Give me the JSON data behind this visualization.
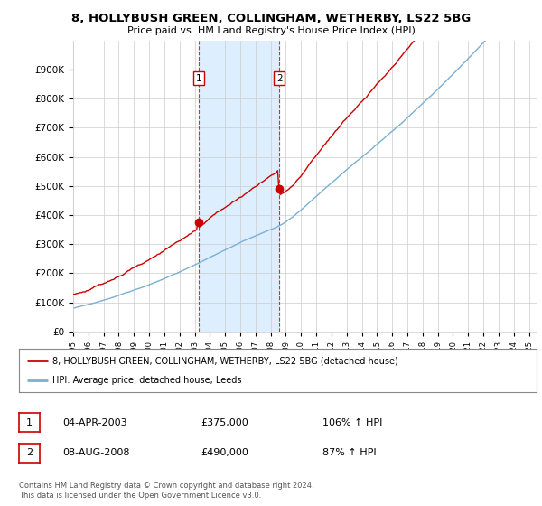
{
  "title_line1": "8, HOLLYBUSH GREEN, COLLINGHAM, WETHERBY, LS22 5BG",
  "title_line2": "Price paid vs. HM Land Registry's House Price Index (HPI)",
  "ylabel_ticks": [
    "£0",
    "£100K",
    "£200K",
    "£300K",
    "£400K",
    "£500K",
    "£600K",
    "£700K",
    "£800K",
    "£900K"
  ],
  "ylim": [
    0,
    1000000
  ],
  "xlim_start": 1995.0,
  "xlim_end": 2025.5,
  "hpi_color": "#7bafd4",
  "price_color": "#cc0000",
  "sale1_x": 2003.25,
  "sale1_y": 375000,
  "sale1_label": "1",
  "sale2_x": 2008.58,
  "sale2_y": 490000,
  "sale2_label": "2",
  "shaded_color": "#ddeeff",
  "legend_line1": "8, HOLLYBUSH GREEN, COLLINGHAM, WETHERBY, LS22 5BG (detached house)",
  "legend_line2": "HPI: Average price, detached house, Leeds",
  "table_row1_num": "1",
  "table_row1_date": "04-APR-2003",
  "table_row1_price": "£375,000",
  "table_row1_hpi": "106% ↑ HPI",
  "table_row2_num": "2",
  "table_row2_date": "08-AUG-2008",
  "table_row2_price": "£490,000",
  "table_row2_hpi": "87% ↑ HPI",
  "footer": "Contains HM Land Registry data © Crown copyright and database right 2024.\nThis data is licensed under the Open Government Licence v3.0.",
  "background_color": "#ffffff",
  "grid_color": "#cccccc"
}
